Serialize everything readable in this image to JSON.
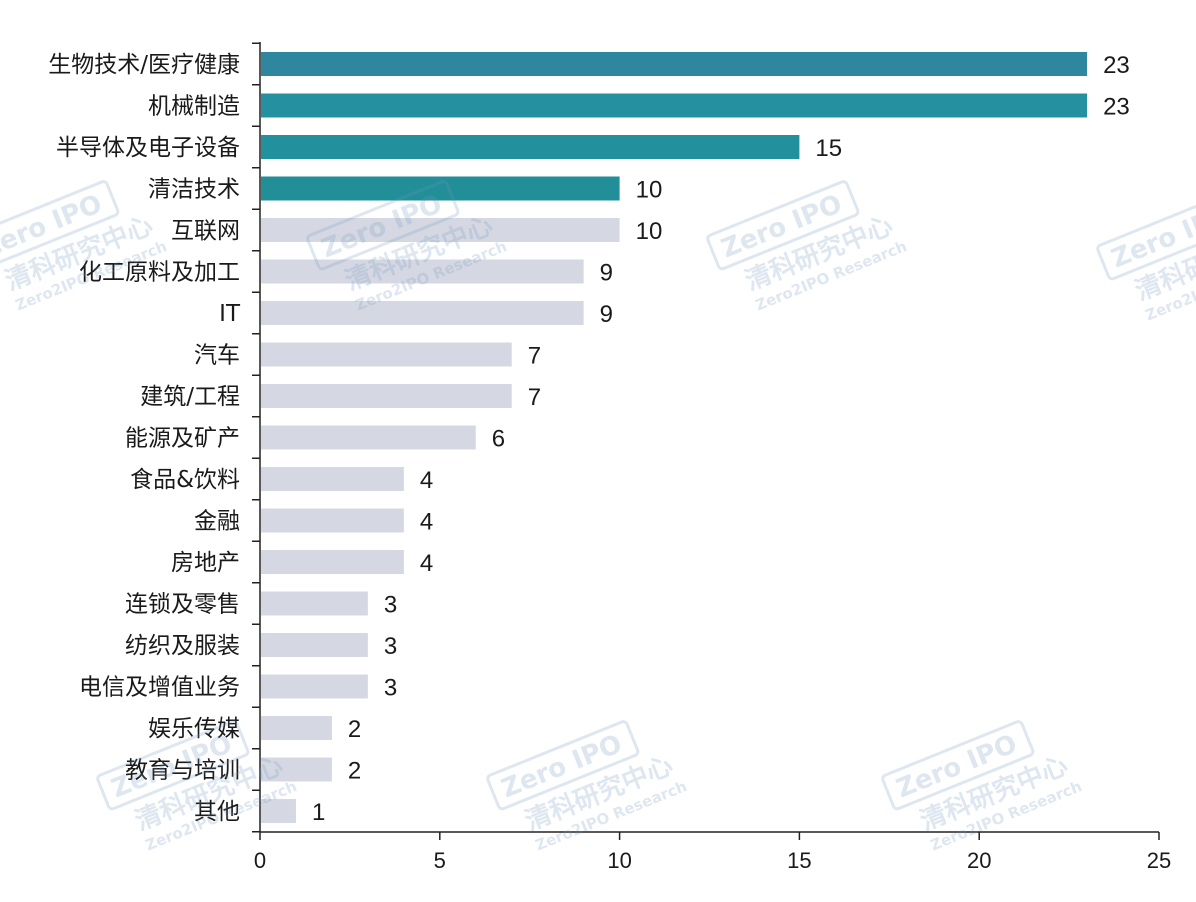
{
  "chart_data": {
    "type": "bar",
    "orientation": "horizontal",
    "categories": [
      "生物技术/医疗健康",
      "机械制造",
      "半导体及电子设备",
      "清洁技术",
      "互联网",
      "化工原料及加工",
      "IT",
      "汽车",
      "建筑/工程",
      "能源及矿产",
      "食品&饮料",
      "金融",
      "房地产",
      "连锁及零售",
      "纺织及服装",
      "电信及增值业务",
      "娱乐传媒",
      "教育与培训",
      "其他"
    ],
    "values": [
      23,
      23,
      15,
      10,
      10,
      9,
      9,
      7,
      7,
      6,
      4,
      4,
      4,
      3,
      3,
      3,
      2,
      2,
      1
    ],
    "highlight_count": 4,
    "highlight_colors": [
      "#2f869f",
      "#2590a0",
      "#23919d",
      "#228f98"
    ],
    "default_color": "#d5d8e2",
    "xlim": [
      0,
      25
    ],
    "xticks": [
      0,
      5,
      10,
      15,
      20,
      25
    ],
    "grid": false,
    "title": "",
    "xlabel": "",
    "ylabel": ""
  },
  "watermark": {
    "brand": "Zero IPO",
    "name_cn": "清科研究中心",
    "name_en": "Zero2IPO Research"
  }
}
